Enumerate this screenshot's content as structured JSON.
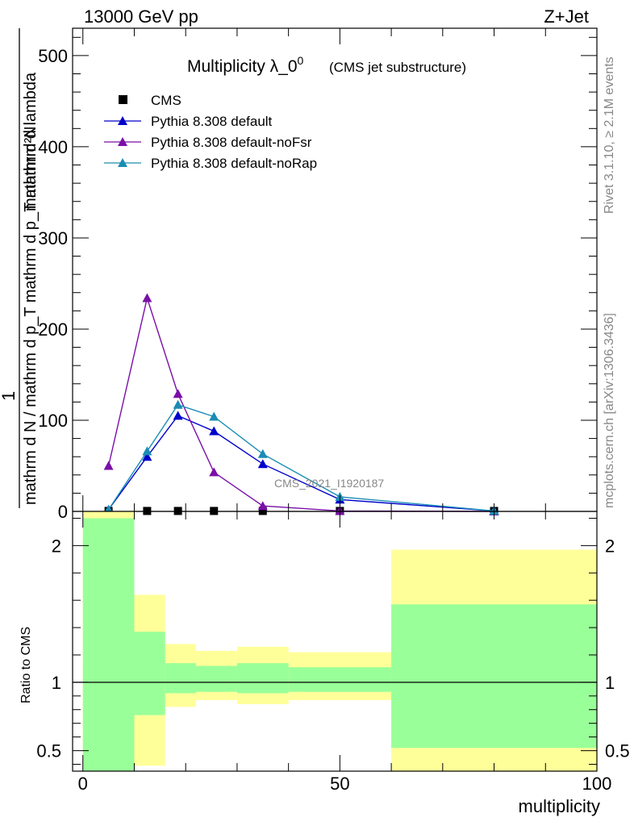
{
  "header": {
    "left": "13000 GeV pp",
    "right": "Z+Jet"
  },
  "side_text": {
    "rivet": "Rivet 3.1.10, ≥ 2.1M events",
    "mcplots": "mcplots.cern.ch [arXiv:1306.3436]"
  },
  "watermark": "CMS_2021_I1920187",
  "chart_data": [
    {
      "type": "line",
      "title_main": "Multiplicity λ_0",
      "title_sup": "0",
      "title_sub": "(CMS jet substructure)",
      "ylabel_numerator": "1",
      "ylabel_denominator": "mathrm d N / mathrm d p_T mathrm d p_T mathrm d lambda",
      "ylabel_top": "mathrm d²N",
      "ylim": [
        0,
        530
      ],
      "xlim": [
        -2,
        100
      ],
      "yticks": [
        0,
        100,
        200,
        300,
        400,
        500
      ],
      "yticklabels": [
        "0",
        "100",
        "200",
        "300",
        "400",
        "500"
      ],
      "legend_position": "top-left",
      "series": [
        {
          "name": "CMS",
          "color": "#000000",
          "marker": "square",
          "x": [
            5,
            12.5,
            18.5,
            25.5,
            35,
            50,
            80
          ],
          "y": [
            0.5,
            0.5,
            0.5,
            0.5,
            0.5,
            0.5,
            0.5
          ]
        },
        {
          "name": "Pythia 8.308 default",
          "color": "#0000cc",
          "marker": "triangle",
          "x": [
            5,
            12.5,
            18.5,
            25.5,
            35,
            50,
            80
          ],
          "y": [
            2,
            60,
            105,
            88,
            52,
            13,
            0.5
          ]
        },
        {
          "name": "Pythia 8.308 default-noFsr",
          "color": "#7a0fa8",
          "marker": "triangle",
          "x": [
            5,
            12.5,
            18.5,
            25.5,
            35,
            50,
            80
          ],
          "y": [
            50,
            234,
            129,
            43,
            6,
            0.5,
            0
          ]
        },
        {
          "name": "Pythia 8.308 default-noRap",
          "color": "#1a8db5",
          "marker": "triangle",
          "x": [
            5,
            12.5,
            18.5,
            25.5,
            35,
            50,
            80
          ],
          "y": [
            2,
            66,
            117,
            104,
            63,
            16,
            0.5
          ]
        }
      ]
    },
    {
      "type": "area",
      "ylabel": "Ratio to CMS",
      "xlabel": "multiplicity",
      "ylim": [
        0.35,
        2.25
      ],
      "xlim": [
        -2,
        100
      ],
      "yticks": [
        0.5,
        1,
        2
      ],
      "yticklabels": [
        "0.5",
        "1",
        "2"
      ],
      "xticks": [
        0,
        50,
        100
      ],
      "xticklabels": [
        "0",
        "50",
        "100"
      ],
      "reference_line": 1,
      "bins": [
        {
          "x0": 0,
          "x1": 10,
          "green": [
            0.35,
            2.2
          ],
          "yellow": [
            0.35,
            2.25
          ]
        },
        {
          "x0": 10,
          "x1": 16,
          "green": [
            0.76,
            1.37
          ],
          "yellow": [
            0.39,
            1.64
          ]
        },
        {
          "x0": 16,
          "x1": 22,
          "green": [
            0.92,
            1.14
          ],
          "yellow": [
            0.82,
            1.28
          ]
        },
        {
          "x0": 22,
          "x1": 30,
          "green": [
            0.93,
            1.12
          ],
          "yellow": [
            0.87,
            1.23
          ]
        },
        {
          "x0": 30,
          "x1": 40,
          "green": [
            0.92,
            1.14
          ],
          "yellow": [
            0.84,
            1.26
          ]
        },
        {
          "x0": 40,
          "x1": 60,
          "green": [
            0.93,
            1.11
          ],
          "yellow": [
            0.87,
            1.22
          ]
        },
        {
          "x0": 60,
          "x1": 100,
          "green": [
            0.52,
            1.57
          ],
          "yellow": [
            0.35,
            1.97
          ]
        }
      ],
      "colors": {
        "green": "#99ff99",
        "yellow": "#ffff99"
      }
    }
  ]
}
